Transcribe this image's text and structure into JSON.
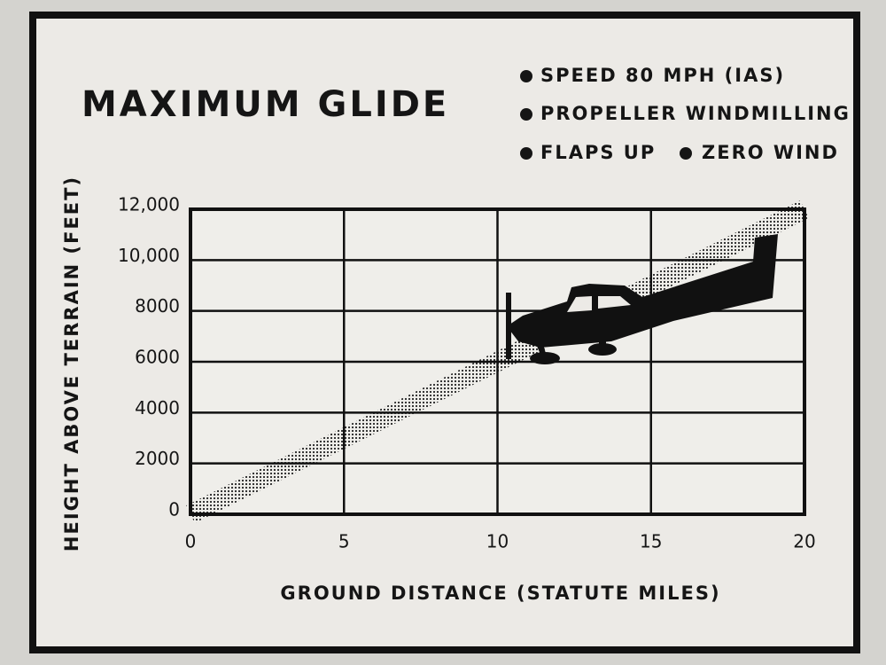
{
  "chart_data": {
    "type": "line",
    "title": "MAXIMUM GLIDE",
    "annotations": [
      "SPEED 80 MPH (IAS)",
      "PROPELLER WINDMILLING",
      "FLAPS UP",
      "ZERO WIND"
    ],
    "xlabel": "GROUND DISTANCE (STATUTE MILES)",
    "ylabel": "HEIGHT ABOVE TERRAIN (FEET)",
    "x": [
      0,
      20
    ],
    "series": [
      {
        "color": "#222222",
        "values": [
          0,
          12000
        ]
      }
    ],
    "xlim": [
      0,
      20
    ],
    "xticks": [
      0,
      5,
      10,
      15,
      20
    ],
    "ylim": [
      0,
      12000
    ],
    "yticks": [
      0,
      2000,
      4000,
      6000,
      8000,
      {
        "value": 10000,
        "label": "10,000"
      },
      {
        "value": 12000,
        "label": "12,000"
      }
    ],
    "grid": true
  }
}
